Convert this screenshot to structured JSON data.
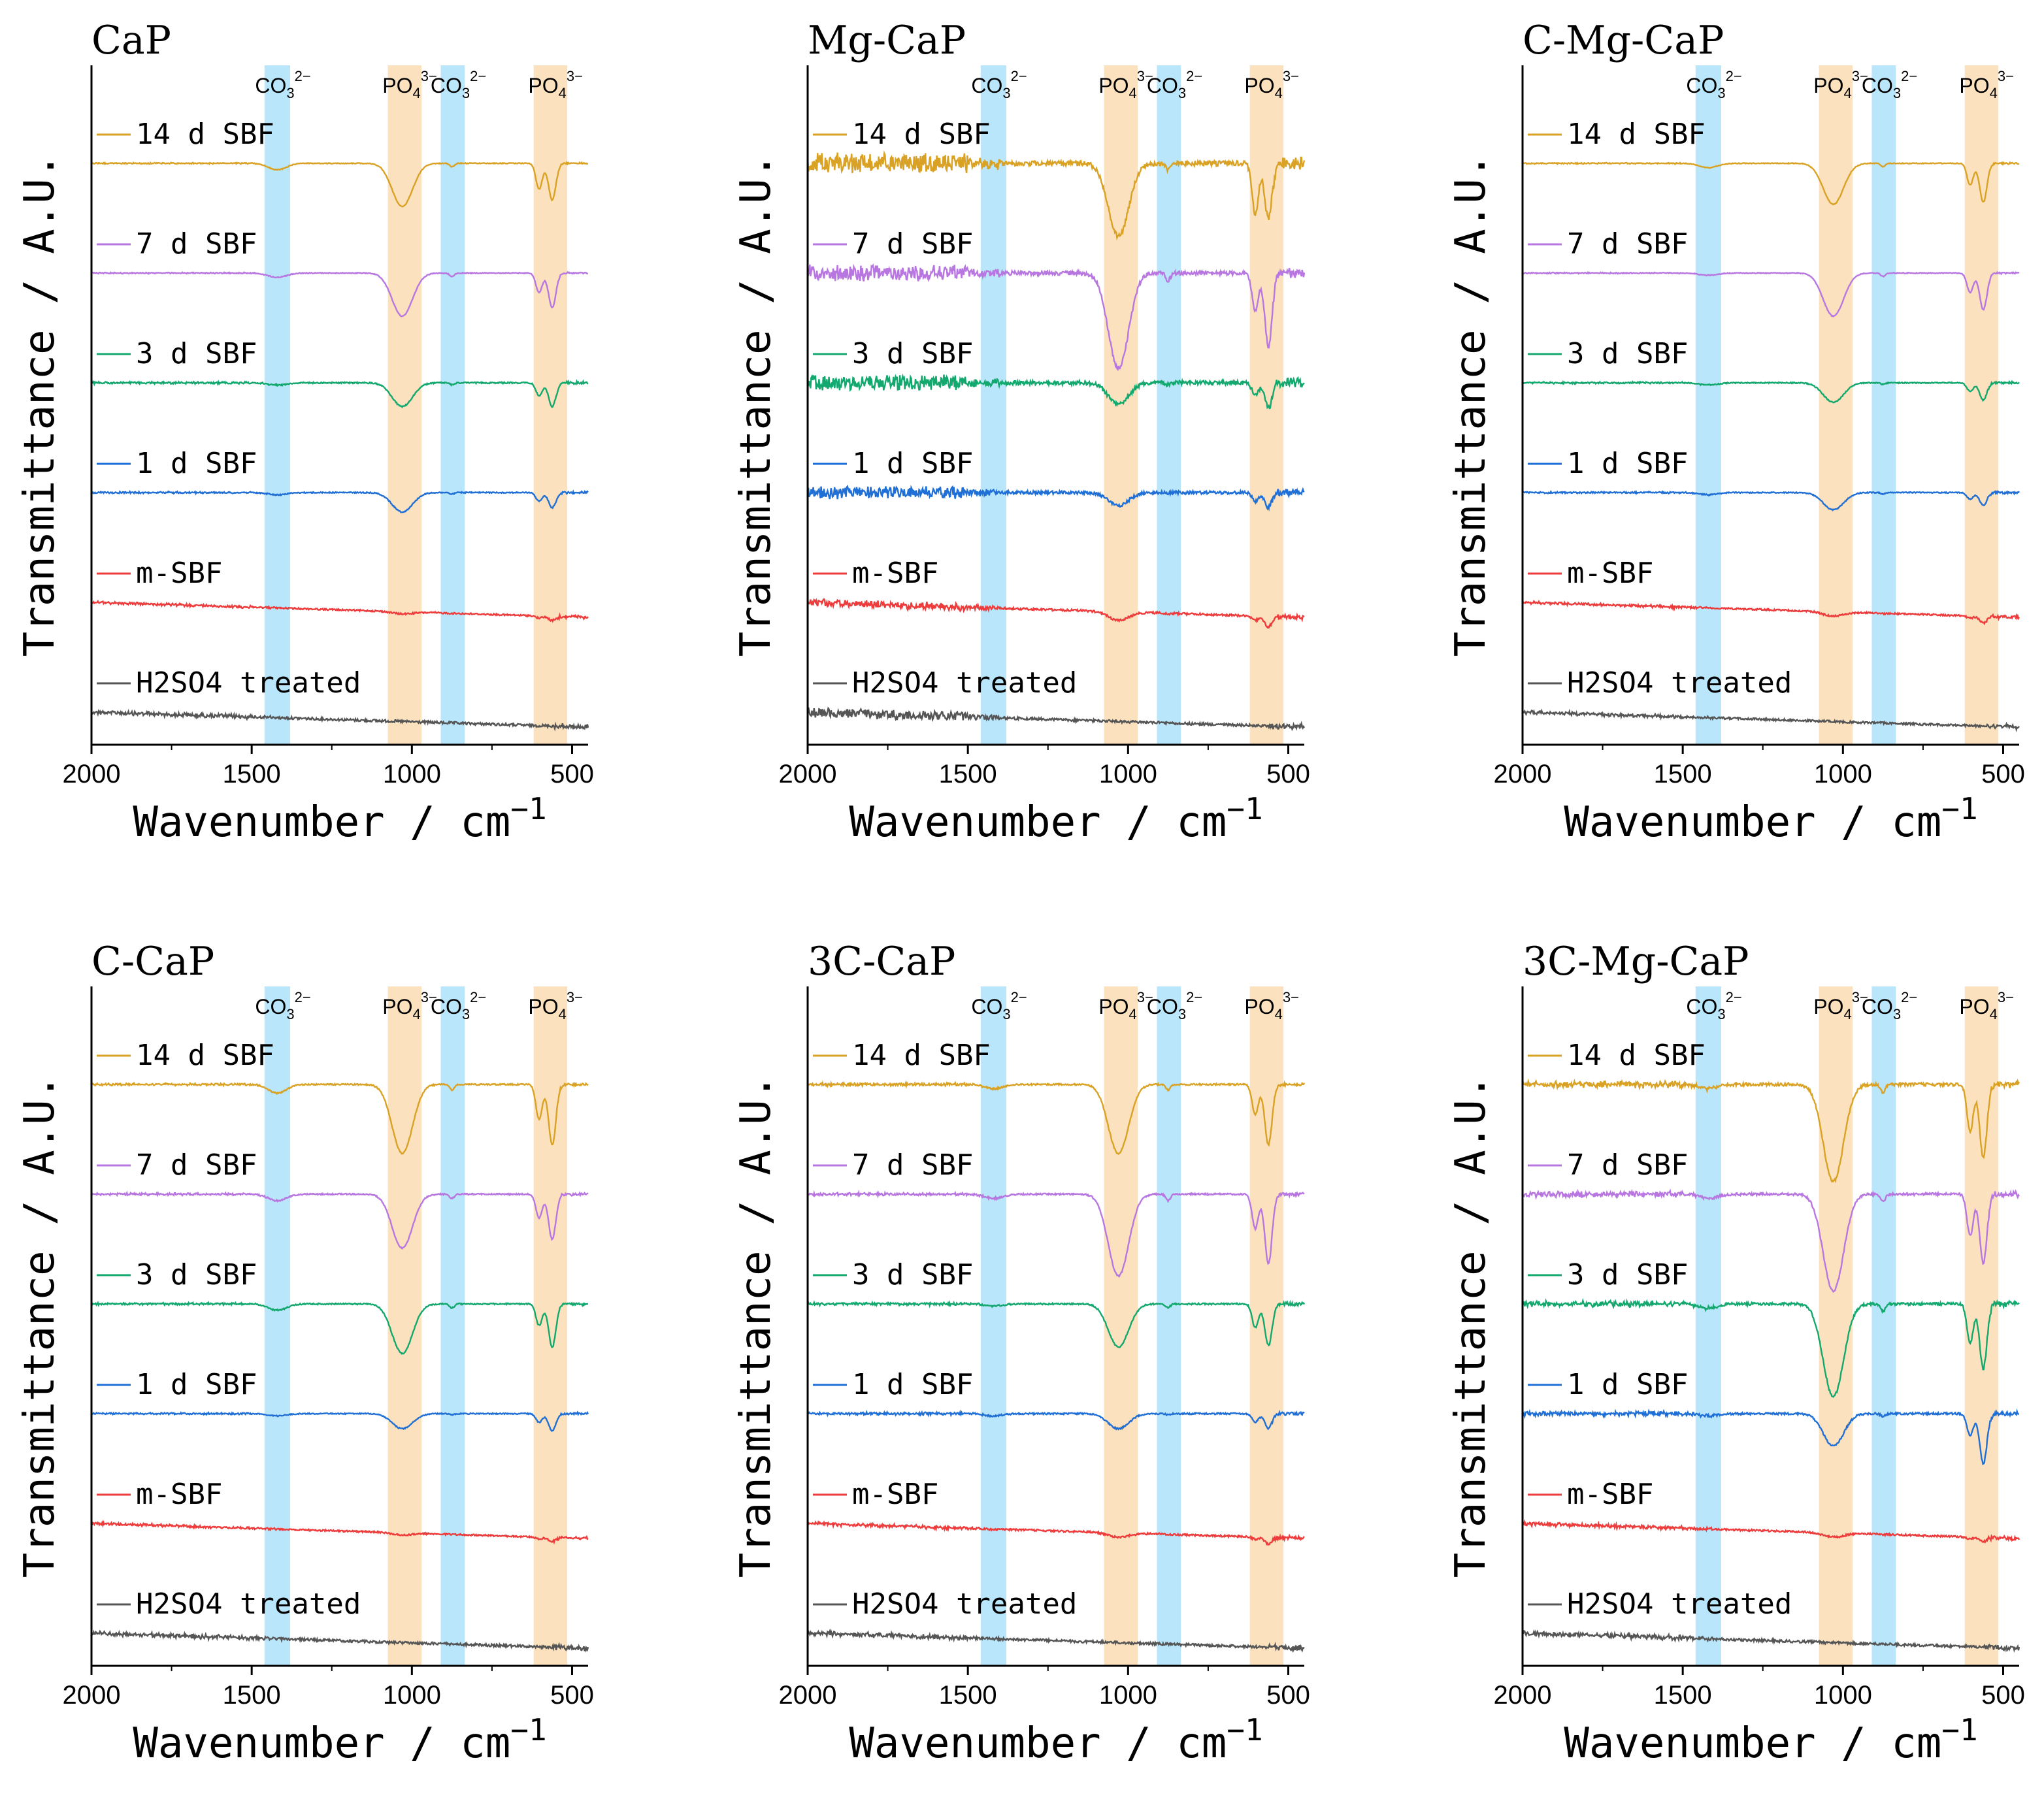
{
  "chart_data": {
    "type": "line",
    "figure_ylabel": "Transmittance / A.U.",
    "figure_xlabel_base": "Wavenumber / cm",
    "figure_xlabel_exp": "−1",
    "xlim": [
      2000,
      450
    ],
    "xticks": [
      2000,
      1500,
      1000,
      500
    ],
    "band_labels": [
      {
        "base": "CO",
        "sub": "3",
        "sup": "2−"
      },
      {
        "base": "PO",
        "sub": "4",
        "sup": "3−"
      },
      {
        "base": "CO",
        "sub": "3",
        "sup": "2−"
      },
      {
        "base": "PO",
        "sub": "4",
        "sup": "3−"
      }
    ],
    "bands": [
      {
        "kind": "carbonate",
        "range": [
          1460,
          1380
        ],
        "color": "#b9e6fb"
      },
      {
        "kind": "phosphate",
        "range": [
          1075,
          970
        ],
        "color": "#fbe1bd"
      },
      {
        "kind": "carbonate",
        "range": [
          910,
          835
        ],
        "color": "#b9e6fb"
      },
      {
        "kind": "phosphate",
        "range": [
          620,
          515
        ],
        "color": "#fbe1bd"
      }
    ],
    "series_style": [
      {
        "name": "H2SO4 treated",
        "color": "#555555"
      },
      {
        "name": "m-SBF",
        "color": "#ee3b3b"
      },
      {
        "name": "1 d SBF",
        "color": "#1f6fd6"
      },
      {
        "name": "3 d SBF",
        "color": "#13a86d"
      },
      {
        "name": "7 d SBF",
        "color": "#b877e0"
      },
      {
        "name": "14 d SBF",
        "color": "#d9a224"
      }
    ],
    "panels": [
      {
        "title": "CaP",
        "noise_high": 0.8,
        "series": [
          {
            "name": "H2SO4 treated",
            "p1030": 0.0,
            "p600": 0.0,
            "p560": 0.0,
            "p1410": 0.0,
            "noise": 1.0
          },
          {
            "name": "m-SBF",
            "p1030": 0.05,
            "p600": 0.05,
            "p560": 0.1,
            "p1410": 0.0,
            "noise": 0.6
          },
          {
            "name": "1 d SBF",
            "p1030": 0.45,
            "p600": 0.2,
            "p560": 0.35,
            "p1410": 0.05,
            "noise": 0.4
          },
          {
            "name": "3 d SBF",
            "p1030": 0.55,
            "p600": 0.3,
            "p560": 0.55,
            "p1410": 0.05,
            "noise": 0.5
          },
          {
            "name": "7 d SBF",
            "p1030": 1.0,
            "p600": 0.45,
            "p560": 0.8,
            "p1410": 0.1,
            "noise": 0.3
          },
          {
            "name": "14 d SBF",
            "p1030": 1.0,
            "p600": 0.6,
            "p560": 0.85,
            "p1410": 0.15,
            "noise": 0.3
          }
        ]
      },
      {
        "title": "Mg-CaP",
        "noise_high": 2.5,
        "series": [
          {
            "name": "H2SO4 treated",
            "p1030": 0.0,
            "p600": 0.0,
            "p560": 0.0,
            "p1410": 0.0,
            "noise": 1.0
          },
          {
            "name": "m-SBF",
            "p1030": 0.2,
            "p600": 0.1,
            "p560": 0.25,
            "p1410": 0.0,
            "noise": 0.8
          },
          {
            "name": "1 d SBF",
            "p1030": 0.3,
            "p600": 0.2,
            "p560": 0.35,
            "p1410": 0.0,
            "noise": 1.2
          },
          {
            "name": "3 d SBF",
            "p1030": 0.5,
            "p600": 0.3,
            "p560": 0.55,
            "p1410": 0.0,
            "noise": 1.6
          },
          {
            "name": "7 d SBF",
            "p1030": 2.2,
            "p600": 0.9,
            "p560": 1.7,
            "p1410": 0.0,
            "noise": 1.6
          },
          {
            "name": "14 d SBF",
            "p1030": 1.7,
            "p600": 1.2,
            "p560": 1.3,
            "p1410": 0.0,
            "noise": 2.0
          }
        ]
      },
      {
        "title": "C-Mg-CaP",
        "noise_high": 0.8,
        "series": [
          {
            "name": "H2SO4 treated",
            "p1030": 0.0,
            "p600": 0.0,
            "p560": 0.0,
            "p1410": 0.0,
            "noise": 0.8
          },
          {
            "name": "m-SBF",
            "p1030": 0.1,
            "p600": 0.05,
            "p560": 0.15,
            "p1410": 0.0,
            "noise": 0.6
          },
          {
            "name": "1 d SBF",
            "p1030": 0.4,
            "p600": 0.15,
            "p560": 0.3,
            "p1410": 0.05,
            "noise": 0.4
          },
          {
            "name": "3 d SBF",
            "p1030": 0.45,
            "p600": 0.2,
            "p560": 0.4,
            "p1410": 0.05,
            "noise": 0.4
          },
          {
            "name": "7 d SBF",
            "p1030": 1.0,
            "p600": 0.45,
            "p560": 0.85,
            "p1410": 0.05,
            "noise": 0.3
          },
          {
            "name": "14 d SBF",
            "p1030": 0.95,
            "p600": 0.5,
            "p560": 0.9,
            "p1410": 0.1,
            "noise": 0.3
          }
        ]
      },
      {
        "title": "C-CaP",
        "noise_high": 0.8,
        "series": [
          {
            "name": "H2SO4 treated",
            "p1030": 0.0,
            "p600": 0.0,
            "p560": 0.0,
            "p1410": 0.0,
            "noise": 1.0
          },
          {
            "name": "m-SBF",
            "p1030": 0.05,
            "p600": 0.05,
            "p560": 0.1,
            "p1410": 0.0,
            "noise": 0.6
          },
          {
            "name": "1 d SBF",
            "p1030": 0.35,
            "p600": 0.2,
            "p560": 0.4,
            "p1410": 0.05,
            "noise": 0.4
          },
          {
            "name": "3 d SBF",
            "p1030": 1.15,
            "p600": 0.5,
            "p560": 1.0,
            "p1410": 0.15,
            "noise": 0.5
          },
          {
            "name": "7 d SBF",
            "p1030": 1.25,
            "p600": 0.55,
            "p560": 1.05,
            "p1410": 0.15,
            "noise": 0.5
          },
          {
            "name": "14 d SBF",
            "p1030": 1.6,
            "p600": 0.8,
            "p560": 1.4,
            "p1410": 0.2,
            "noise": 0.5
          }
        ]
      },
      {
        "title": "3C-CaP",
        "noise_high": 0.9,
        "series": [
          {
            "name": "H2SO4 treated",
            "p1030": 0.0,
            "p600": 0.0,
            "p560": 0.0,
            "p1410": 0.0,
            "noise": 1.0
          },
          {
            "name": "m-SBF",
            "p1030": 0.1,
            "p600": 0.05,
            "p560": 0.15,
            "p1410": 0.0,
            "noise": 0.7
          },
          {
            "name": "1 d SBF",
            "p1030": 0.35,
            "p600": 0.2,
            "p560": 0.35,
            "p1410": 0.05,
            "noise": 0.6
          },
          {
            "name": "3 d SBF",
            "p1030": 1.0,
            "p600": 0.55,
            "p560": 0.95,
            "p1410": 0.05,
            "noise": 0.6
          },
          {
            "name": "7 d SBF",
            "p1030": 1.9,
            "p600": 0.8,
            "p560": 1.6,
            "p1410": 0.1,
            "noise": 0.6
          },
          {
            "name": "14 d SBF",
            "p1030": 1.6,
            "p600": 0.7,
            "p560": 1.4,
            "p1410": 0.1,
            "noise": 0.6
          }
        ]
      },
      {
        "title": "3C-Mg-CaP",
        "noise_high": 1.2,
        "series": [
          {
            "name": "H2SO4 treated",
            "p1030": 0.0,
            "p600": 0.0,
            "p560": 0.0,
            "p1410": 0.0,
            "noise": 1.0
          },
          {
            "name": "m-SBF",
            "p1030": 0.1,
            "p600": 0.05,
            "p560": 0.1,
            "p1410": 0.0,
            "noise": 0.7
          },
          {
            "name": "1 d SBF",
            "p1030": 0.75,
            "p600": 0.5,
            "p560": 1.15,
            "p1410": 0.05,
            "noise": 0.8
          },
          {
            "name": "3 d SBF",
            "p1030": 2.15,
            "p600": 0.9,
            "p560": 1.5,
            "p1410": 0.1,
            "noise": 1.0
          },
          {
            "name": "7 d SBF",
            "p1030": 2.25,
            "p600": 0.95,
            "p560": 1.6,
            "p1410": 0.1,
            "noise": 1.0
          },
          {
            "name": "14 d SBF",
            "p1030": 2.25,
            "p600": 1.1,
            "p560": 1.7,
            "p1410": 0.1,
            "noise": 1.2
          }
        ]
      }
    ]
  }
}
